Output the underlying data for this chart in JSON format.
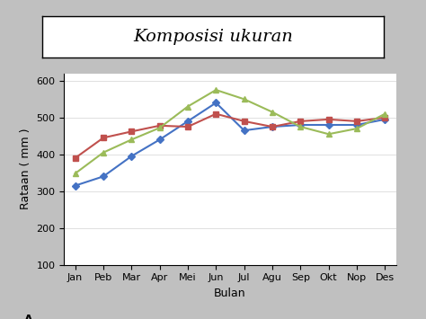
{
  "title": "Komposisi ukuran",
  "xlabel": "Bulan",
  "ylabel": "Rataan ( mm )",
  "annotation": "A",
  "x_labels": [
    "Jan",
    "Peb",
    "Mar",
    "Apr",
    "Mei",
    "Jun",
    "Jul",
    "Agu",
    "Sep",
    "Okt",
    "Nop",
    "Des"
  ],
  "series1": [
    315,
    340,
    395,
    440,
    490,
    540,
    465,
    475,
    480,
    480,
    480,
    495
  ],
  "series2": [
    390,
    445,
    462,
    478,
    475,
    510,
    490,
    475,
    490,
    495,
    490,
    500
  ],
  "series3": [
    348,
    405,
    440,
    472,
    530,
    575,
    550,
    515,
    475,
    455,
    470,
    510
  ],
  "color1": "#4472C4",
  "color2": "#C0504D",
  "color3": "#9BBB59",
  "ylim": [
    100,
    620
  ],
  "yticks": [
    100,
    200,
    300,
    400,
    500,
    600
  ],
  "bg_color": "#C0C0C0",
  "plot_bg": "#f0f0f0",
  "title_fontsize": 14,
  "axis_fontsize": 8,
  "legend_fontsize": 8
}
